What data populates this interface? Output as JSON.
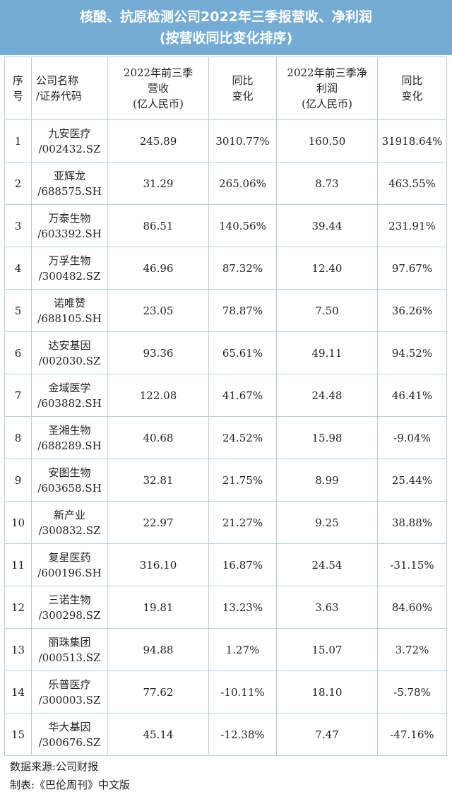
{
  "title": {
    "line1": "核酸、抗原检测公司2022年三季报营收、净利润",
    "line2": "(按营收同比变化排序)"
  },
  "headers": {
    "seq_1": "序",
    "seq_2": "号",
    "company_1": "公司名称",
    "company_2": "/证券代码",
    "revenue_1": "2022年前三季",
    "revenue_2": "营收",
    "revenue_3": "(亿人民币)",
    "rev_change_1": "同比",
    "rev_change_2": "变化",
    "profit_1": "2022年前三季净",
    "profit_2": "利润",
    "profit_3": "(亿人民币)",
    "profit_change_1": "同比",
    "profit_change_2": "变化"
  },
  "rows": [
    {
      "idx": "1",
      "name": "九安医疗",
      "code": "/002432.SZ",
      "revenue": "245.89",
      "rev_change": "3010.77%",
      "profit": "160.50",
      "profit_change": "31918.64%"
    },
    {
      "idx": "2",
      "name": "亚辉龙",
      "code": "/688575.SH",
      "revenue": "31.29",
      "rev_change": "265.06%",
      "profit": "8.73",
      "profit_change": "463.55%"
    },
    {
      "idx": "3",
      "name": "万泰生物",
      "code": "/603392.SH",
      "revenue": "86.51",
      "rev_change": "140.56%",
      "profit": "39.44",
      "profit_change": "231.91%"
    },
    {
      "idx": "4",
      "name": "万孚生物",
      "code": "/300482.SZ",
      "revenue": "46.96",
      "rev_change": "87.32%",
      "profit": "12.40",
      "profit_change": "97.67%"
    },
    {
      "idx": "5",
      "name": "诺唯赞",
      "code": "/688105.SH",
      "revenue": "23.05",
      "rev_change": "78.87%",
      "profit": "7.50",
      "profit_change": "36.26%"
    },
    {
      "idx": "6",
      "name": "达安基因",
      "code": "/002030.SZ",
      "revenue": "93.36",
      "rev_change": "65.61%",
      "profit": "49.11",
      "profit_change": "94.52%"
    },
    {
      "idx": "7",
      "name": "金域医学",
      "code": "/603882.SH",
      "revenue": "122.08",
      "rev_change": "41.67%",
      "profit": "24.48",
      "profit_change": "46.41%"
    },
    {
      "idx": "8",
      "name": "圣湘生物",
      "code": "/688289.SH",
      "revenue": "40.68",
      "rev_change": "24.52%",
      "profit": "15.98",
      "profit_change": "-9.04%"
    },
    {
      "idx": "9",
      "name": "安图生物",
      "code": "/603658.SH",
      "revenue": "32.81",
      "rev_change": "21.75%",
      "profit": "8.99",
      "profit_change": "25.44%"
    },
    {
      "idx": "10",
      "name": "新产业",
      "code": "/300832.SZ",
      "revenue": "22.97",
      "rev_change": "21.27%",
      "profit": "9.25",
      "profit_change": "38.88%"
    },
    {
      "idx": "11",
      "name": "复星医药",
      "code": "/600196.SH",
      "revenue": "316.10",
      "rev_change": "16.87%",
      "profit": "24.54",
      "profit_change": "-31.15%"
    },
    {
      "idx": "12",
      "name": "三诺生物",
      "code": "/300298.SZ",
      "revenue": "19.81",
      "rev_change": "13.23%",
      "profit": "3.63",
      "profit_change": "84.60%"
    },
    {
      "idx": "13",
      "name": "丽珠集团",
      "code": "/000513.SZ",
      "revenue": "94.88",
      "rev_change": "1.27%",
      "profit": "15.07",
      "profit_change": "3.72%"
    },
    {
      "idx": "14",
      "name": "乐普医疗",
      "code": "/300003.SZ",
      "revenue": "77.62",
      "rev_change": "-10.11%",
      "profit": "18.10",
      "profit_change": "-5.78%"
    },
    {
      "idx": "15",
      "name": "华大基因",
      "code": "/300676.SZ",
      "revenue": "45.14",
      "rev_change": "-12.38%",
      "profit": "7.47",
      "profit_change": "-47.16%"
    }
  ],
  "footer": {
    "source": "数据来源:公司财报",
    "maker": "制表:《巴伦周刊》中文版"
  },
  "colors": {
    "title_bg": "#74acd6",
    "border": "#b9cfe0"
  }
}
